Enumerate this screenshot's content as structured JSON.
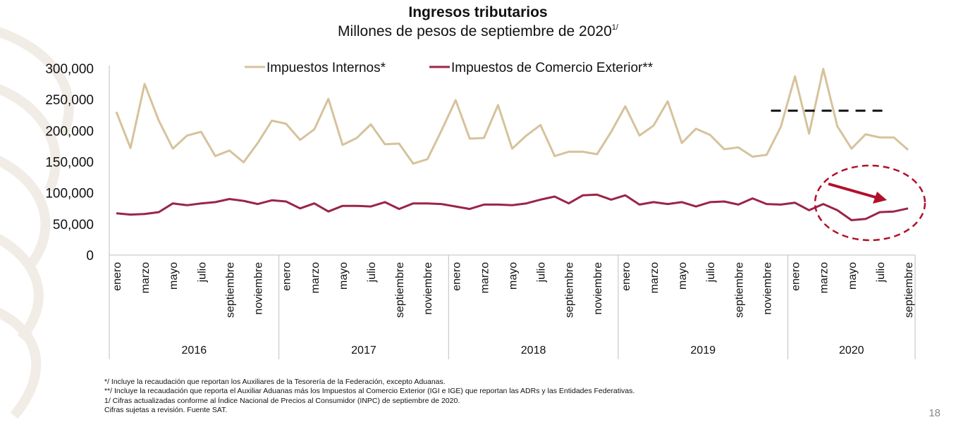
{
  "header": {
    "title": "Ingresos tributarios",
    "subtitle": "Millones de pesos de septiembre de 2020",
    "subtitle_sup": "1/"
  },
  "colors": {
    "internos": "#d6c29c",
    "comercio": "#9a2547",
    "arrow": "#b1102b",
    "dashed": "#111111",
    "grid": "#bfbfbf"
  },
  "chart_data": {
    "type": "line",
    "title": "Ingresos tributarios",
    "subtitle": "Millones de pesos de septiembre de 2020",
    "ylim": [
      0,
      300000
    ],
    "yticks": [
      "300,000",
      "250,000",
      "200,000",
      "150,000",
      "100,000",
      "50,000",
      "0"
    ],
    "x_tick_labels": [
      "enero",
      "marzo",
      "mayo",
      "julio",
      "septiembre",
      "noviembre"
    ],
    "years": [
      "2016",
      "2017",
      "2018",
      "2019",
      "2020"
    ],
    "legend_position": "top",
    "series": [
      {
        "name": "Impuestos Internos*",
        "values": [
          230000,
          172000,
          275000,
          216000,
          171000,
          192000,
          198000,
          159000,
          168000,
          149000,
          180000,
          216000,
          211000,
          185000,
          202000,
          251000,
          177000,
          188000,
          210000,
          178000,
          179000,
          147000,
          154000,
          200000,
          249000,
          187000,
          188000,
          241000,
          171000,
          192000,
          209000,
          159000,
          166000,
          166000,
          162000,
          198000,
          239000,
          192000,
          208000,
          247000,
          180000,
          203000,
          193000,
          170000,
          173000,
          158000,
          161000,
          206000,
          287000,
          195000,
          299000,
          207000,
          171000,
          194000,
          189000,
          189000,
          169000
        ]
      },
      {
        "name": "Impuestos de Comercio Exterior**",
        "values": [
          67000,
          65000,
          66000,
          69000,
          83000,
          80000,
          83000,
          85000,
          90000,
          87000,
          82000,
          88000,
          86000,
          75000,
          83000,
          70000,
          79000,
          79000,
          78000,
          85000,
          74000,
          83000,
          83000,
          82000,
          78000,
          74000,
          81000,
          81000,
          80000,
          83000,
          89000,
          94000,
          83000,
          96000,
          97000,
          89000,
          96000,
          81000,
          85000,
          82000,
          85000,
          78000,
          85000,
          86000,
          81000,
          91000,
          82000,
          81000,
          84000,
          72000,
          82000,
          72000,
          56000,
          58000,
          69000,
          70000,
          75000
        ]
      }
    ],
    "reference_line": {
      "value": 232000,
      "from_index": 48,
      "to_index": 56,
      "style": "dashed"
    }
  },
  "footnotes": {
    "n1": "*/ Incluye la recaudación que reportan los Auxiliares de la Tesorería de la Federación, excepto Aduanas.",
    "n2": "**/ Incluye la recaudación que reporta el Auxiliar Aduanas más los Impuestos al Comercio Exterior (IGI e IGE) que reportan las ADRs y las Entidades Federativas.",
    "n3": "1/ Cifras actualizadas conforme al Índice Nacional de Precios al Consumidor (INPC) de septiembre de 2020.",
    "n4": "Cifras sujetas a revisión.      Fuente SAT."
  },
  "page_number": "18"
}
